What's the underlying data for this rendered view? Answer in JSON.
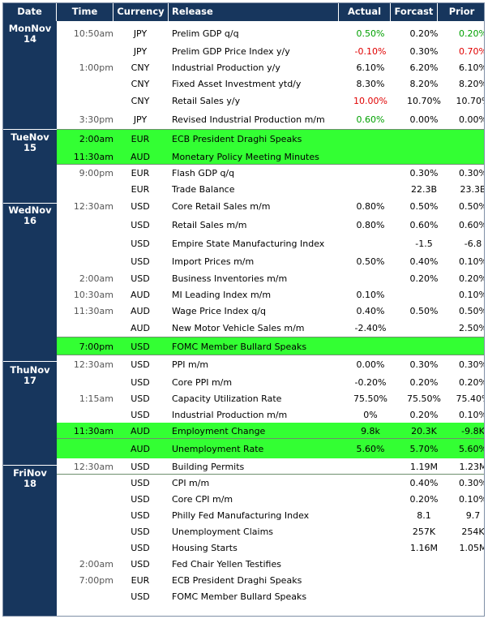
{
  "header": {
    "date": "Date",
    "time": "Time",
    "currency": "Currency",
    "release": "Release",
    "actual": "Actual",
    "forecast": "Forcast",
    "prior": "Prior"
  },
  "days": [
    {
      "line1": "MonNov",
      "line2": "14"
    },
    {
      "line1": "TueNov",
      "line2": "15"
    },
    {
      "line1": "WedNov",
      "line2": "16"
    },
    {
      "line1": "ThuNov",
      "line2": "17"
    },
    {
      "line1": "FriNov",
      "line2": "18"
    }
  ],
  "colors": {
    "header_bg": "#17365d",
    "highlight": "#33ff33",
    "positive": "#00a000",
    "negative": "#e00000"
  },
  "rows": [
    {
      "time": "10:50am",
      "currency": "JPY",
      "release": "Prelim GDP q/q",
      "actual": "0.50%",
      "actual_color": "pos",
      "forecast": "0.20%",
      "prior": "0.20%",
      "prior_color": "pos",
      "highlight": false
    },
    {
      "time": "",
      "currency": "JPY",
      "release": "Prelim GDP Price Index y/y",
      "actual": "-0.10%",
      "actual_color": "neg",
      "forecast": "0.30%",
      "prior": "0.70%",
      "prior_color": "neg",
      "highlight": false
    },
    {
      "time": "1:00pm",
      "currency": "CNY",
      "release": "Industrial Production y/y",
      "actual": "6.10%",
      "forecast": "6.20%",
      "prior": "6.10%",
      "highlight": false
    },
    {
      "time": "",
      "currency": "CNY",
      "release": "Fixed Asset Investment ytd/y",
      "actual": "8.30%",
      "forecast": "8.20%",
      "prior": "8.20%",
      "highlight": false
    },
    {
      "time": "",
      "currency": "CNY",
      "release": "Retail Sales y/y",
      "actual": "10.00%",
      "actual_color": "neg",
      "forecast": "10.70%",
      "prior": "10.70%",
      "highlight": false
    },
    {
      "time": "3:30pm",
      "currency": "JPY",
      "release": "Revised Industrial Production m/m",
      "actual": "0.60%",
      "actual_color": "pos",
      "forecast": "0.00%",
      "prior": "0.00%",
      "highlight": false
    },
    {
      "time": "2:00am",
      "currency": "EUR",
      "release": "ECB President Draghi Speaks",
      "actual": "",
      "forecast": "",
      "prior": "",
      "highlight": true
    },
    {
      "time": "11:30am",
      "currency": "AUD",
      "release": "Monetary Policy Meeting Minutes",
      "actual": "",
      "forecast": "",
      "prior": "",
      "highlight": true
    },
    {
      "time": "9:00pm",
      "currency": "EUR",
      "release": "Flash GDP q/q",
      "actual": "",
      "forecast": "0.30%",
      "prior": "0.30%",
      "highlight": false
    },
    {
      "time": "",
      "currency": "EUR",
      "release": "Trade Balance",
      "actual": "",
      "forecast": "22.3B",
      "prior": "23.3B",
      "highlight": false
    },
    {
      "time": "12:30am",
      "currency": "USD",
      "release": "Core Retail Sales m/m",
      "actual": "0.80%",
      "forecast": "0.50%",
      "prior": "0.50%",
      "highlight": false
    },
    {
      "time": "",
      "currency": "USD",
      "release": "Retail Sales m/m",
      "actual": "0.80%",
      "forecast": "0.60%",
      "prior": "0.60%",
      "highlight": false
    },
    {
      "time": "",
      "currency": "USD",
      "release": "Empire State Manufacturing Index",
      "actual": "",
      "forecast": "-1.5",
      "prior": "-6.8",
      "highlight": false
    },
    {
      "time": "",
      "currency": "USD",
      "release": "Import Prices m/m",
      "actual": "0.50%",
      "forecast": "0.40%",
      "prior": "0.10%",
      "highlight": false
    },
    {
      "time": "2:00am",
      "currency": "USD",
      "release": "Business Inventories m/m",
      "actual": "",
      "forecast": "0.20%",
      "prior": "0.20%",
      "highlight": false
    },
    {
      "time": "10:30am",
      "currency": "AUD",
      "release": "MI Leading Index m/m",
      "actual": "0.10%",
      "forecast": "",
      "prior": "0.10%",
      "highlight": false
    },
    {
      "time": "11:30am",
      "currency": "AUD",
      "release": "Wage Price Index q/q",
      "actual": "0.40%",
      "forecast": "0.50%",
      "prior": "0.50%",
      "highlight": false
    },
    {
      "time": "",
      "currency": "AUD",
      "release": "New Motor Vehicle Sales m/m",
      "actual": "-2.40%",
      "forecast": "",
      "prior": "2.50%",
      "highlight": false
    },
    {
      "time": "7:00pm",
      "currency": "USD",
      "release": "FOMC Member Bullard Speaks",
      "actual": "",
      "forecast": "",
      "prior": "",
      "highlight": true
    },
    {
      "time": "12:30am",
      "currency": "USD",
      "release": "PPI m/m",
      "actual": "0.00%",
      "forecast": "0.30%",
      "prior": "0.30%",
      "highlight": false
    },
    {
      "time": "",
      "currency": "USD",
      "release": "Core PPI m/m",
      "actual": "-0.20%",
      "forecast": "0.20%",
      "prior": "0.20%",
      "highlight": false
    },
    {
      "time": "1:15am",
      "currency": "USD",
      "release": "Capacity Utilization Rate",
      "actual": "75.50%",
      "forecast": "75.50%",
      "prior": "75.40%",
      "highlight": false
    },
    {
      "time": "",
      "currency": "USD",
      "release": "Industrial Production m/m",
      "actual": "0%",
      "forecast": "0.20%",
      "prior": "0.10%",
      "highlight": false
    },
    {
      "time": "11:30am",
      "currency": "AUD",
      "release": "Employment Change",
      "actual": "9.8k",
      "forecast": "20.3K",
      "prior": "-9.8K",
      "highlight": true
    },
    {
      "time": "",
      "currency": "AUD",
      "release": "Unemployment Rate",
      "actual": "5.60%",
      "forecast": "5.70%",
      "prior": "5.60%",
      "highlight": true
    },
    {
      "time": "12:30am",
      "currency": "USD",
      "release": "Building Permits",
      "actual": "",
      "forecast": "1.19M",
      "prior": "1.23M",
      "highlight": false
    },
    {
      "time": "",
      "currency": "USD",
      "release": "CPI m/m",
      "actual": "",
      "forecast": "0.40%",
      "prior": "0.30%",
      "highlight": false
    },
    {
      "time": "",
      "currency": "USD",
      "release": "Core CPI m/m",
      "actual": "",
      "forecast": "0.20%",
      "prior": "0.10%",
      "highlight": false
    },
    {
      "time": "",
      "currency": "USD",
      "release": "Philly Fed Manufacturing Index",
      "actual": "",
      "forecast": "8.1",
      "prior": "9.7",
      "highlight": false
    },
    {
      "time": "",
      "currency": "USD",
      "release": "Unemployment Claims",
      "actual": "",
      "forecast": "257K",
      "prior": "254K",
      "highlight": false
    },
    {
      "time": "",
      "currency": "USD",
      "release": "Housing Starts",
      "actual": "",
      "forecast": "1.16M",
      "prior": "1.05M",
      "highlight": false
    },
    {
      "time": "2:00am",
      "currency": "USD",
      "release": "Fed Chair Yellen Testifies",
      "actual": "",
      "forecast": "",
      "prior": "",
      "highlight": false
    },
    {
      "time": "7:00pm",
      "currency": "EUR",
      "release": "ECB President Draghi Speaks",
      "actual": "",
      "forecast": "",
      "prior": "",
      "highlight": false
    },
    {
      "time": "",
      "currency": "USD",
      "release": "FOMC Member Bullard Speaks",
      "actual": "",
      "forecast": "",
      "prior": "",
      "highlight": false
    }
  ]
}
